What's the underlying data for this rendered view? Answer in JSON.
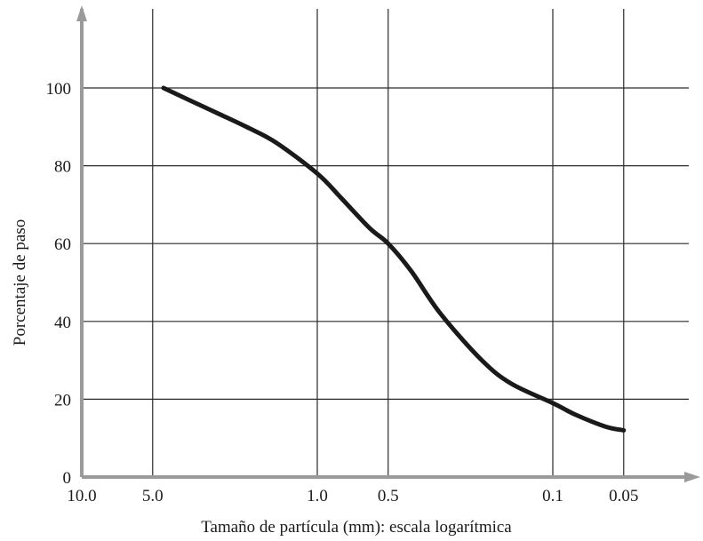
{
  "chart_data": {
    "type": "line",
    "title": "",
    "xlabel": "Tamaño de partícula (mm): escala logarítmica",
    "ylabel": "Porcentaje de paso",
    "x_scale": "log",
    "x_reversed": true,
    "xlim": [
      10.0,
      0.05
    ],
    "ylim": [
      0,
      100
    ],
    "x_ticks": [
      {
        "value": 10.0,
        "label": "10.0"
      },
      {
        "value": 5.0,
        "label": "5.0"
      },
      {
        "value": 1.0,
        "label": "1.0"
      },
      {
        "value": 0.5,
        "label": "0.5"
      },
      {
        "value": 0.1,
        "label": "0.1"
      },
      {
        "value": 0.05,
        "label": "0.05"
      }
    ],
    "y_ticks": [
      {
        "value": 0,
        "label": "0"
      },
      {
        "value": 20,
        "label": "20"
      },
      {
        "value": 40,
        "label": "40"
      },
      {
        "value": 60,
        "label": "60"
      },
      {
        "value": 80,
        "label": "80"
      },
      {
        "value": 100,
        "label": "100"
      }
    ],
    "grid": true,
    "series": [
      {
        "x": [
          4.5,
          3.0,
          2.0,
          1.5,
          1.0,
          0.8,
          0.6,
          0.5,
          0.4,
          0.3,
          0.2,
          0.15,
          0.1,
          0.08,
          0.06,
          0.05
        ],
        "y": [
          100,
          95,
          90,
          86,
          78,
          72,
          64,
          60,
          53,
          42,
          30,
          24,
          19,
          16,
          13,
          12
        ]
      }
    ],
    "colors": {
      "curve": "#1a1a1a",
      "axis": "#9a9a9a",
      "grid": "#2a2a2a"
    }
  }
}
